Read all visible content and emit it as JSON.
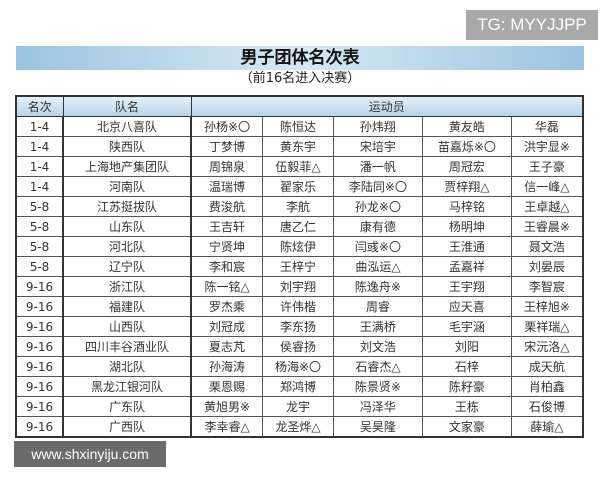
{
  "watermark_top": "TG: MYYJJPP",
  "title": "男子团体名次表",
  "subtitle": "（前16名进入决赛）",
  "table": {
    "headers": [
      "名次",
      "队名",
      "运动员"
    ],
    "rows": [
      {
        "rank": "1-4",
        "team": "北京八喜队",
        "players": [
          "孙杨※〇",
          "陈恒达",
          "孙炜翔",
          "黄友皓",
          "华磊"
        ]
      },
      {
        "rank": "1-4",
        "team": "陕西队",
        "players": [
          "丁梦博",
          "黄东宇",
          "宋培宇",
          "苗嘉烁※〇",
          "洪宇显※"
        ]
      },
      {
        "rank": "1-4",
        "team": "上海地产集团队",
        "players": [
          "周锦泉",
          "伍毅菲△",
          "潘一帆",
          "周冠宏",
          "王子豪"
        ]
      },
      {
        "rank": "1-4",
        "team": "河南队",
        "players": [
          "温瑞博",
          "翟家乐",
          "李陆同※〇",
          "贾梓翔△",
          "信一峰△"
        ]
      },
      {
        "rank": "5-8",
        "team": "江苏挺拔队",
        "players": [
          "费浚航",
          "李航",
          "孙龙※〇",
          "马梓铭",
          "王卓越△"
        ]
      },
      {
        "rank": "5-8",
        "team": "山东队",
        "players": [
          "王吉轩",
          "唐乙仁",
          "康有德",
          "杨明坤",
          "王睿晨※"
        ]
      },
      {
        "rank": "5-8",
        "team": "河北队",
        "players": [
          "宁贤坤",
          "陈炫伊",
          "闫彧※〇",
          "王淮通",
          "聂文浩"
        ]
      },
      {
        "rank": "5-8",
        "team": "辽宁队",
        "players": [
          "李和宸",
          "王梓宁",
          "曲泓运△",
          "孟嘉祥",
          "刘晏辰"
        ]
      },
      {
        "rank": "9-16",
        "team": "浙江队",
        "players": [
          "陈一铭△",
          "刘宇翔",
          "陈逸舟※",
          "王宇翔",
          "李智宸"
        ]
      },
      {
        "rank": "9-16",
        "team": "福建队",
        "players": [
          "罗杰乘",
          "许伟楷",
          "周睿",
          "应天喜",
          "王梓旭※"
        ]
      },
      {
        "rank": "9-16",
        "team": "山西队",
        "players": [
          "刘冠成",
          "李东扬",
          "王满桥",
          "毛宇涵",
          "栗祥瑞△"
        ]
      },
      {
        "rank": "9-16",
        "team": "四川丰谷酒业队",
        "players": [
          "夏志芃",
          "侯睿扬",
          "刘文浩",
          "刘阳",
          "宋沅洛△"
        ]
      },
      {
        "rank": "9-16",
        "team": "湖北队",
        "players": [
          "孙海涛",
          "杨海※〇",
          "石睿杰△",
          "石梓",
          "成天航"
        ]
      },
      {
        "rank": "9-16",
        "team": "黑龙江银河队",
        "players": [
          "栗恩赐",
          "郑鸿博",
          "陈景贤※",
          "陈籽豪",
          "肖柏鑫"
        ]
      },
      {
        "rank": "9-16",
        "team": "广东队",
        "players": [
          "黄旭男※",
          "龙宇",
          "冯泽华",
          "王栋",
          "石俊博"
        ]
      },
      {
        "rank": "9-16",
        "team": "广西队",
        "players": [
          "李幸睿△",
          "龙圣烨△",
          "吴昊隆",
          "文家豪",
          "薛瑜△"
        ]
      }
    ]
  },
  "watermark_bottom": "www.shxinyiju.com"
}
